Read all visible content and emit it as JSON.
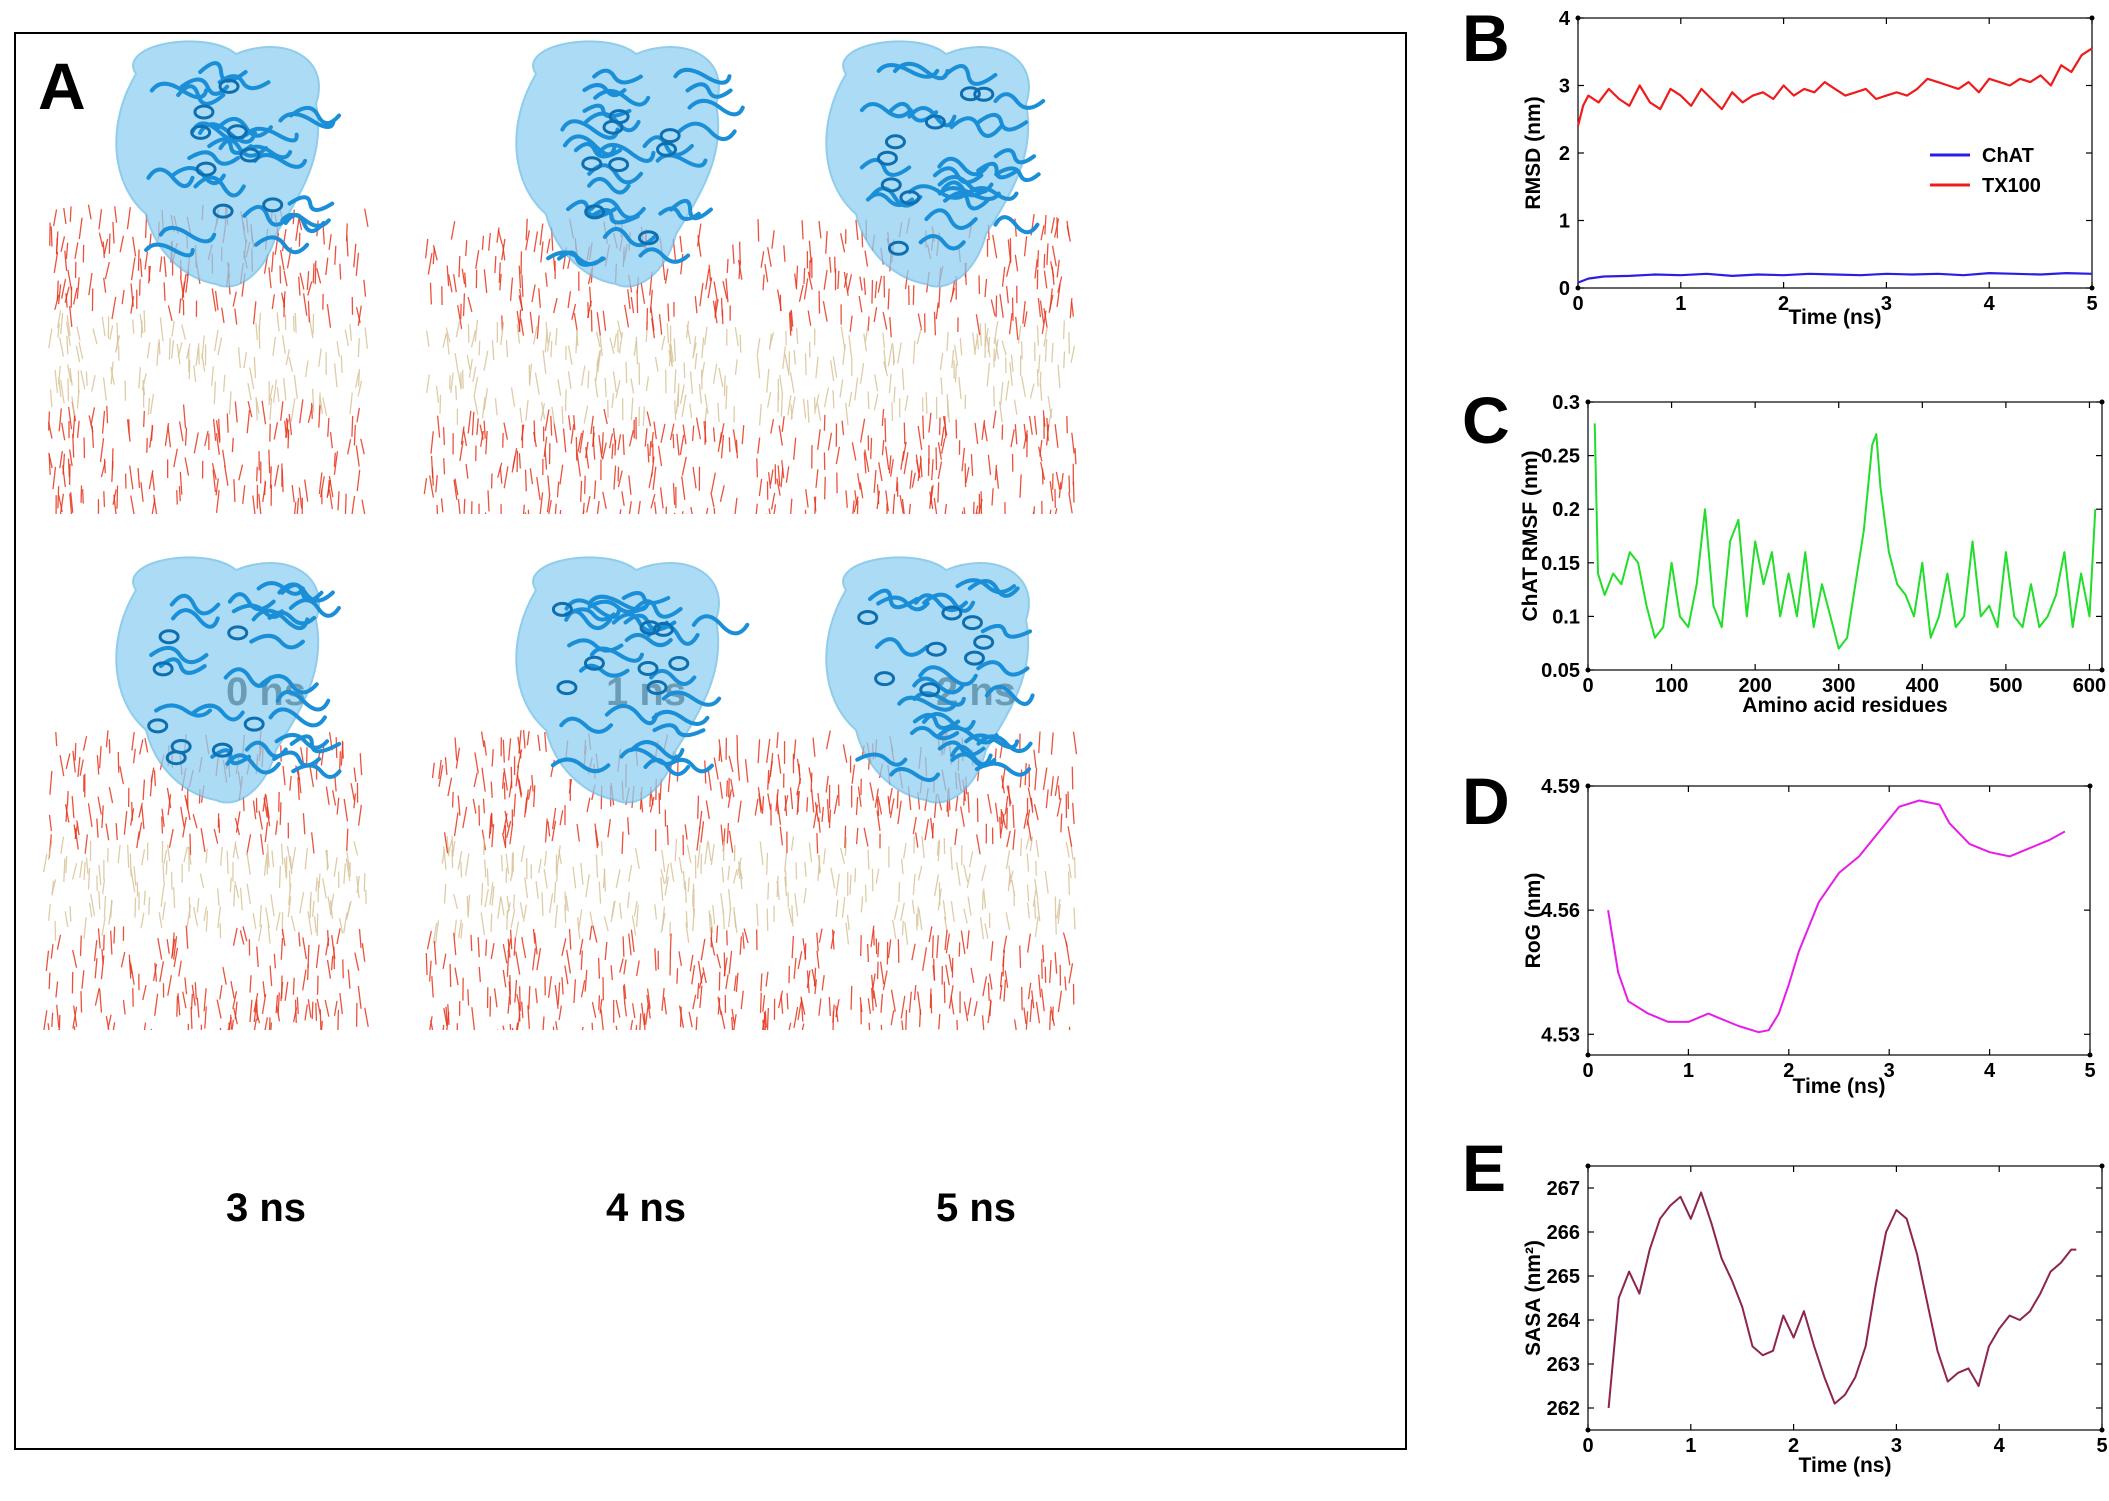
{
  "panel_a": {
    "letter": "A",
    "snapshots": [
      {
        "label": "0 ns"
      },
      {
        "label": "1 ns"
      },
      {
        "label": "2 ns"
      },
      {
        "label": "3 ns"
      },
      {
        "label": "4 ns"
      },
      {
        "label": "5 ns"
      }
    ],
    "colors": {
      "protein": "#1a8fd8",
      "protein_surface": "#8fd0f2",
      "lipid_head": "#e8341c",
      "lipid_tail": "#d9c49a"
    }
  },
  "chart_data": [
    {
      "panel": "B",
      "type": "line",
      "xlabel": "Time (ns)",
      "ylabel": "RMSD (nm)",
      "xlim": [
        0,
        5
      ],
      "ylim": [
        0,
        4
      ],
      "xticks": [
        "0",
        "1",
        "2",
        "3",
        "4",
        "5"
      ],
      "yticks": [
        "0",
        "1",
        "2",
        "3",
        "4"
      ],
      "legend_position": "right",
      "series": [
        {
          "name": "ChAT",
          "color": "#2a1ee6",
          "x": [
            0,
            0.1,
            0.25,
            0.5,
            0.75,
            1,
            1.25,
            1.5,
            1.75,
            2,
            2.25,
            2.5,
            2.75,
            3,
            3.25,
            3.5,
            3.75,
            4,
            4.25,
            4.5,
            4.75,
            5
          ],
          "y": [
            0.08,
            0.14,
            0.17,
            0.18,
            0.2,
            0.19,
            0.21,
            0.18,
            0.2,
            0.19,
            0.21,
            0.2,
            0.19,
            0.21,
            0.2,
            0.21,
            0.19,
            0.22,
            0.21,
            0.2,
            0.22,
            0.21
          ]
        },
        {
          "name": "TX100",
          "color": "#ee1c1c",
          "x": [
            0,
            0.05,
            0.1,
            0.2,
            0.3,
            0.4,
            0.5,
            0.6,
            0.7,
            0.8,
            0.9,
            1.0,
            1.1,
            1.2,
            1.3,
            1.4,
            1.5,
            1.6,
            1.7,
            1.8,
            1.9,
            2.0,
            2.1,
            2.2,
            2.3,
            2.4,
            2.5,
            2.6,
            2.7,
            2.8,
            2.9,
            3.0,
            3.1,
            3.2,
            3.3,
            3.4,
            3.5,
            3.6,
            3.7,
            3.8,
            3.9,
            4.0,
            4.1,
            4.2,
            4.3,
            4.4,
            4.5,
            4.6,
            4.7,
            4.8,
            4.9,
            5.0
          ],
          "y": [
            2.4,
            2.7,
            2.85,
            2.75,
            2.95,
            2.8,
            2.7,
            3.0,
            2.75,
            2.65,
            2.95,
            2.85,
            2.7,
            2.95,
            2.8,
            2.65,
            2.9,
            2.75,
            2.85,
            2.9,
            2.8,
            3.0,
            2.85,
            2.95,
            2.9,
            3.05,
            2.95,
            2.85,
            2.9,
            2.95,
            2.8,
            2.85,
            2.9,
            2.85,
            2.95,
            3.1,
            3.05,
            3.0,
            2.95,
            3.05,
            2.9,
            3.1,
            3.05,
            3.0,
            3.1,
            3.05,
            3.15,
            3.0,
            3.3,
            3.2,
            3.45,
            3.55
          ]
        }
      ]
    },
    {
      "panel": "C",
      "type": "line",
      "xlabel": "Amino acid residues",
      "ylabel": "ChAT RMSF (nm)",
      "xlim": [
        0,
        615
      ],
      "ylim": [
        0.05,
        0.3
      ],
      "xticks": [
        "0",
        "100",
        "200",
        "300",
        "400",
        "500",
        "600"
      ],
      "yticks": [
        "0.05",
        "0.1",
        "0.15",
        "0.2",
        "0.25",
        "0.3"
      ],
      "series": [
        {
          "color": "#22dd2a",
          "x": [
            8,
            12,
            20,
            30,
            40,
            50,
            60,
            70,
            80,
            90,
            100,
            110,
            120,
            130,
            140,
            150,
            160,
            170,
            180,
            190,
            200,
            210,
            220,
            230,
            240,
            250,
            260,
            270,
            280,
            290,
            300,
            310,
            320,
            330,
            340,
            345,
            350,
            360,
            370,
            380,
            390,
            400,
            410,
            420,
            430,
            440,
            450,
            460,
            470,
            480,
            490,
            500,
            510,
            520,
            530,
            540,
            550,
            560,
            570,
            580,
            590,
            600,
            607
          ],
          "y": [
            0.28,
            0.14,
            0.12,
            0.14,
            0.13,
            0.16,
            0.15,
            0.11,
            0.08,
            0.09,
            0.15,
            0.1,
            0.09,
            0.13,
            0.2,
            0.11,
            0.09,
            0.17,
            0.19,
            0.1,
            0.17,
            0.13,
            0.16,
            0.1,
            0.14,
            0.1,
            0.16,
            0.09,
            0.13,
            0.1,
            0.07,
            0.08,
            0.13,
            0.18,
            0.26,
            0.27,
            0.22,
            0.16,
            0.13,
            0.12,
            0.1,
            0.15,
            0.08,
            0.1,
            0.14,
            0.09,
            0.1,
            0.17,
            0.1,
            0.11,
            0.09,
            0.16,
            0.1,
            0.09,
            0.13,
            0.09,
            0.1,
            0.12,
            0.16,
            0.09,
            0.14,
            0.1,
            0.2
          ]
        }
      ]
    },
    {
      "panel": "D",
      "type": "line",
      "xlabel": "Time (ns)",
      "ylabel": "RoG (nm)",
      "xlim": [
        0,
        5
      ],
      "ylim": [
        4.525,
        4.59
      ],
      "xticks": [
        "0",
        "1",
        "2",
        "3",
        "4",
        "5"
      ],
      "yticks": [
        "4.53",
        "4.56",
        "4.59"
      ],
      "series": [
        {
          "color": "#e81ce8",
          "x": [
            0.2,
            0.3,
            0.4,
            0.6,
            0.8,
            1.0,
            1.2,
            1.3,
            1.5,
            1.7,
            1.8,
            1.9,
            2.0,
            2.1,
            2.3,
            2.5,
            2.7,
            2.9,
            3.1,
            3.3,
            3.5,
            3.6,
            3.8,
            4.0,
            4.2,
            4.4,
            4.6,
            4.75
          ],
          "y": [
            4.56,
            4.545,
            4.538,
            4.535,
            4.533,
            4.533,
            4.535,
            4.534,
            4.532,
            4.5305,
            4.531,
            4.535,
            4.542,
            4.55,
            4.562,
            4.569,
            4.573,
            4.579,
            4.585,
            4.5865,
            4.5855,
            4.581,
            4.576,
            4.574,
            4.573,
            4.575,
            4.577,
            4.579
          ]
        }
      ]
    },
    {
      "panel": "E",
      "type": "line",
      "xlabel": "Time (ns)",
      "ylabel": "SASA (nm²)",
      "xlim": [
        0,
        5
      ],
      "ylim": [
        261.5,
        267.5
      ],
      "xticks": [
        "0",
        "1",
        "2",
        "3",
        "4",
        "5"
      ],
      "yticks": [
        "262",
        "263",
        "264",
        "265",
        "266",
        "267"
      ],
      "series": [
        {
          "color": "#8e2450",
          "x": [
            0.2,
            0.3,
            0.4,
            0.5,
            0.6,
            0.7,
            0.8,
            0.9,
            1.0,
            1.1,
            1.2,
            1.3,
            1.4,
            1.5,
            1.6,
            1.7,
            1.8,
            1.9,
            2.0,
            2.1,
            2.2,
            2.3,
            2.4,
            2.5,
            2.6,
            2.7,
            2.8,
            2.9,
            3.0,
            3.1,
            3.2,
            3.3,
            3.4,
            3.5,
            3.6,
            3.7,
            3.8,
            3.9,
            4.0,
            4.1,
            4.2,
            4.3,
            4.4,
            4.5,
            4.6,
            4.7,
            4.75
          ],
          "y": [
            262.0,
            264.5,
            265.1,
            264.6,
            265.6,
            266.3,
            266.6,
            266.8,
            266.3,
            266.9,
            266.2,
            265.4,
            264.9,
            264.3,
            263.4,
            263.2,
            263.3,
            264.1,
            263.6,
            264.2,
            263.4,
            262.7,
            262.1,
            262.3,
            262.7,
            263.4,
            264.8,
            266.0,
            266.5,
            266.3,
            265.5,
            264.4,
            263.3,
            262.6,
            262.8,
            262.9,
            262.5,
            263.4,
            263.8,
            264.1,
            264.0,
            264.2,
            264.6,
            265.1,
            265.3,
            265.6,
            265.6
          ]
        }
      ]
    }
  ]
}
